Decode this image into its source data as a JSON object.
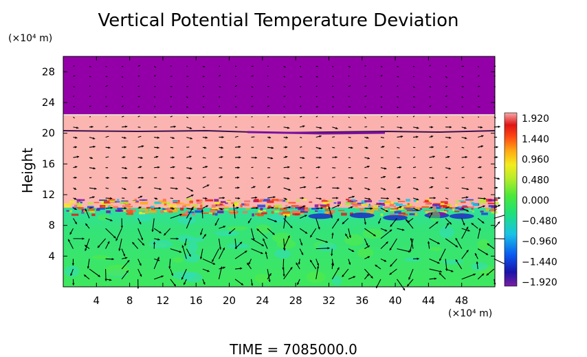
{
  "chart_data": {
    "type": "heatmap",
    "title": "Vertical Potential Temperature Deviation",
    "ylabel": "Height",
    "xunit": "(×10⁴ m)",
    "yunit": "(×10⁴ m)",
    "time_label": "TIME  =  7085000.0",
    "xlim": [
      0,
      52
    ],
    "ylim": [
      0,
      30
    ],
    "x_ticks": [
      4,
      8,
      12,
      16,
      20,
      24,
      28,
      32,
      36,
      40,
      44,
      48
    ],
    "y_ticks": [
      4,
      8,
      12,
      16,
      20,
      24,
      28
    ],
    "colorbar": {
      "range": [
        -1.92,
        1.92
      ],
      "labels": [
        "1.920",
        "1.440",
        "0.960",
        "0.480",
        "0.000",
        "−0.480",
        "−0.960",
        "−1.440",
        "−1.920"
      ],
      "colors": [
        "#7a1fa2",
        "#1a14a8",
        "#0a58f0",
        "#19c3e6",
        "#1ee07a",
        "#4ae83a",
        "#b6ec2a",
        "#f3ec1e",
        "#ffaa14",
        "#ff4a14",
        "#e01414",
        "#f7a8a8"
      ]
    },
    "layers": [
      {
        "name": "upper",
        "y": [
          22.3,
          30
        ],
        "value": -1.92,
        "color": "#9400a8"
      },
      {
        "name": "middle",
        "y": [
          10.2,
          22.3
        ],
        "value": 1.92,
        "color": "#fbb6b2"
      },
      {
        "name": "lower",
        "y": [
          0,
          10.2
        ],
        "value": 0.0,
        "color": "#34e66c"
      }
    ],
    "vector_field": true
  }
}
